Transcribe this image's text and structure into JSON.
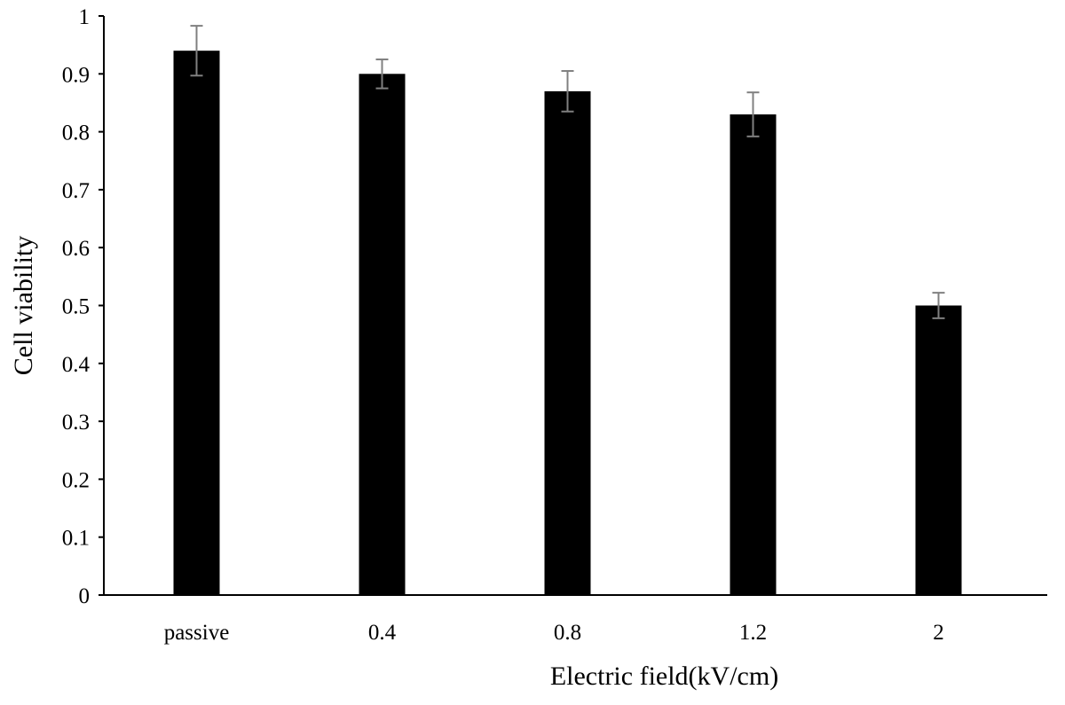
{
  "chart_data": {
    "type": "bar",
    "title": "",
    "xlabel": "Electric field(kV/cm)",
    "ylabel": "Cell viability",
    "categories": [
      "passive",
      "0.4",
      "0.8",
      "1.2",
      "2"
    ],
    "values": [
      0.94,
      0.9,
      0.87,
      0.83,
      0.5
    ],
    "error": [
      0.043,
      0.025,
      0.035,
      0.038,
      0.022
    ],
    "ylim": [
      0,
      1
    ],
    "yticks": [
      "0",
      "0.1",
      "0.2",
      "0.3",
      "0.4",
      "0.5",
      "0.6",
      "0.7",
      "0.8",
      "0.9",
      "1"
    ],
    "grid": false,
    "legend": "none",
    "colors": {
      "bar": "#000000",
      "error_bar": "#808080",
      "axis": "#000000"
    }
  }
}
